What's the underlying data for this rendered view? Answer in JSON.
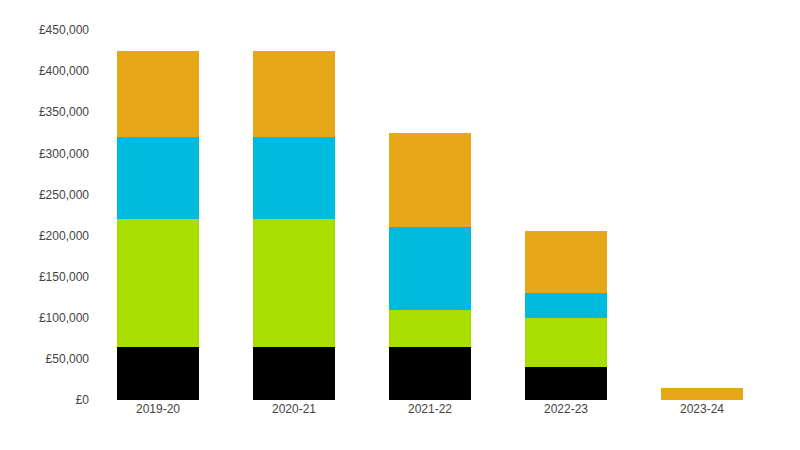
{
  "chart_data": {
    "type": "bar",
    "stacked": true,
    "grid": false,
    "categories": [
      "2019-20",
      "2020-21",
      "2021-22",
      "2022-23",
      "2023-24"
    ],
    "series": [
      {
        "color": "#000000",
        "values": [
          65000,
          65000,
          65000,
          40000,
          0
        ]
      },
      {
        "color": "#AADD00",
        "values": [
          155000,
          155000,
          45000,
          60000,
          0
        ]
      },
      {
        "color": "#00BBDD",
        "values": [
          100000,
          100000,
          100000,
          30000,
          0
        ]
      },
      {
        "color": "#E6A817",
        "values": [
          105000,
          105000,
          115000,
          75000,
          15000
        ]
      }
    ],
    "ylim": [
      0,
      450000
    ],
    "yticks": [
      {
        "value": 0,
        "label": "£0"
      },
      {
        "value": 50000,
        "label": "£50,000"
      },
      {
        "value": 100000,
        "label": "£100,000"
      },
      {
        "value": 150000,
        "label": "£150,000"
      },
      {
        "value": 200000,
        "label": "£200,000"
      },
      {
        "value": 250000,
        "label": "£250,000"
      },
      {
        "value": 300000,
        "label": "£300,000"
      },
      {
        "value": 350000,
        "label": "£350,000"
      },
      {
        "value": 400000,
        "label": "£400,000"
      },
      {
        "value": 450000,
        "label": "£450,000"
      }
    ]
  }
}
